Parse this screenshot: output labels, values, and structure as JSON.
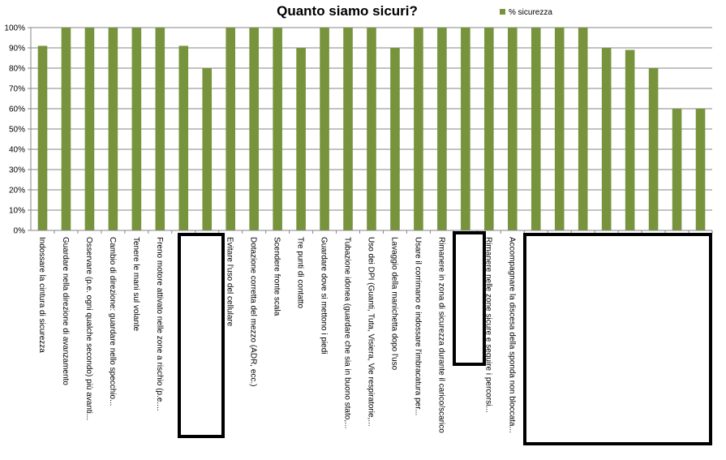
{
  "chart_data": {
    "type": "bar",
    "title": "Quanto siamo sicuri?",
    "xlabel": "",
    "ylabel": "",
    "ylim": [
      0,
      100
    ],
    "y_ticks": [
      "0%",
      "10%",
      "20%",
      "30%",
      "40%",
      "50%",
      "60%",
      "70%",
      "80%",
      "90%",
      "100%"
    ],
    "grid": true,
    "legend_position": "top-right",
    "series": [
      {
        "name": "% sicurezza",
        "color": "#77933C",
        "values": [
          91,
          100,
          100,
          100,
          100,
          100,
          91,
          80,
          100,
          100,
          100,
          90,
          100,
          100,
          100,
          90,
          100,
          100,
          100,
          100,
          100,
          100,
          100,
          100,
          90,
          89,
          80,
          60,
          60
        ]
      }
    ],
    "categories": [
      "Indossare la cintura di sicurezza",
      "Guardare nella direzione di avanzamento",
      "Osservare (p.e. ogni qualche secondo) più avanti...",
      "Cambio di direzione: guardare nello specchio...",
      "Tenere le mani sul volante",
      "Freno motore attivato nelle zone a rischio (p.e....",
      "",
      "",
      "Evitare l'uso del cellulare",
      "Dotazione corretta del mezzo (ADR, ecc.)",
      "Scendere fronte scala",
      "Tre punti di contatto",
      "Guardare dove si mettono i piedi",
      "Tubazione idonea (guardare che sia in buono stato,...",
      "Uso dei DPI (Guanti, Tuta, Visiera, Vie respiratorie,...",
      "Lavaggio della manichetta dopo l'uso",
      "Usare il corrimano e indossare l'imbracatura per...",
      "Rimanere in zona di sicurezza durante il carico/scarico",
      "",
      "Rimanere nelle zone sicure e seguire i percorsi...",
      "Accompagnare la discesa della sponda non bloccata...",
      "",
      "",
      "",
      "",
      "",
      "",
      "",
      ""
    ]
  }
}
